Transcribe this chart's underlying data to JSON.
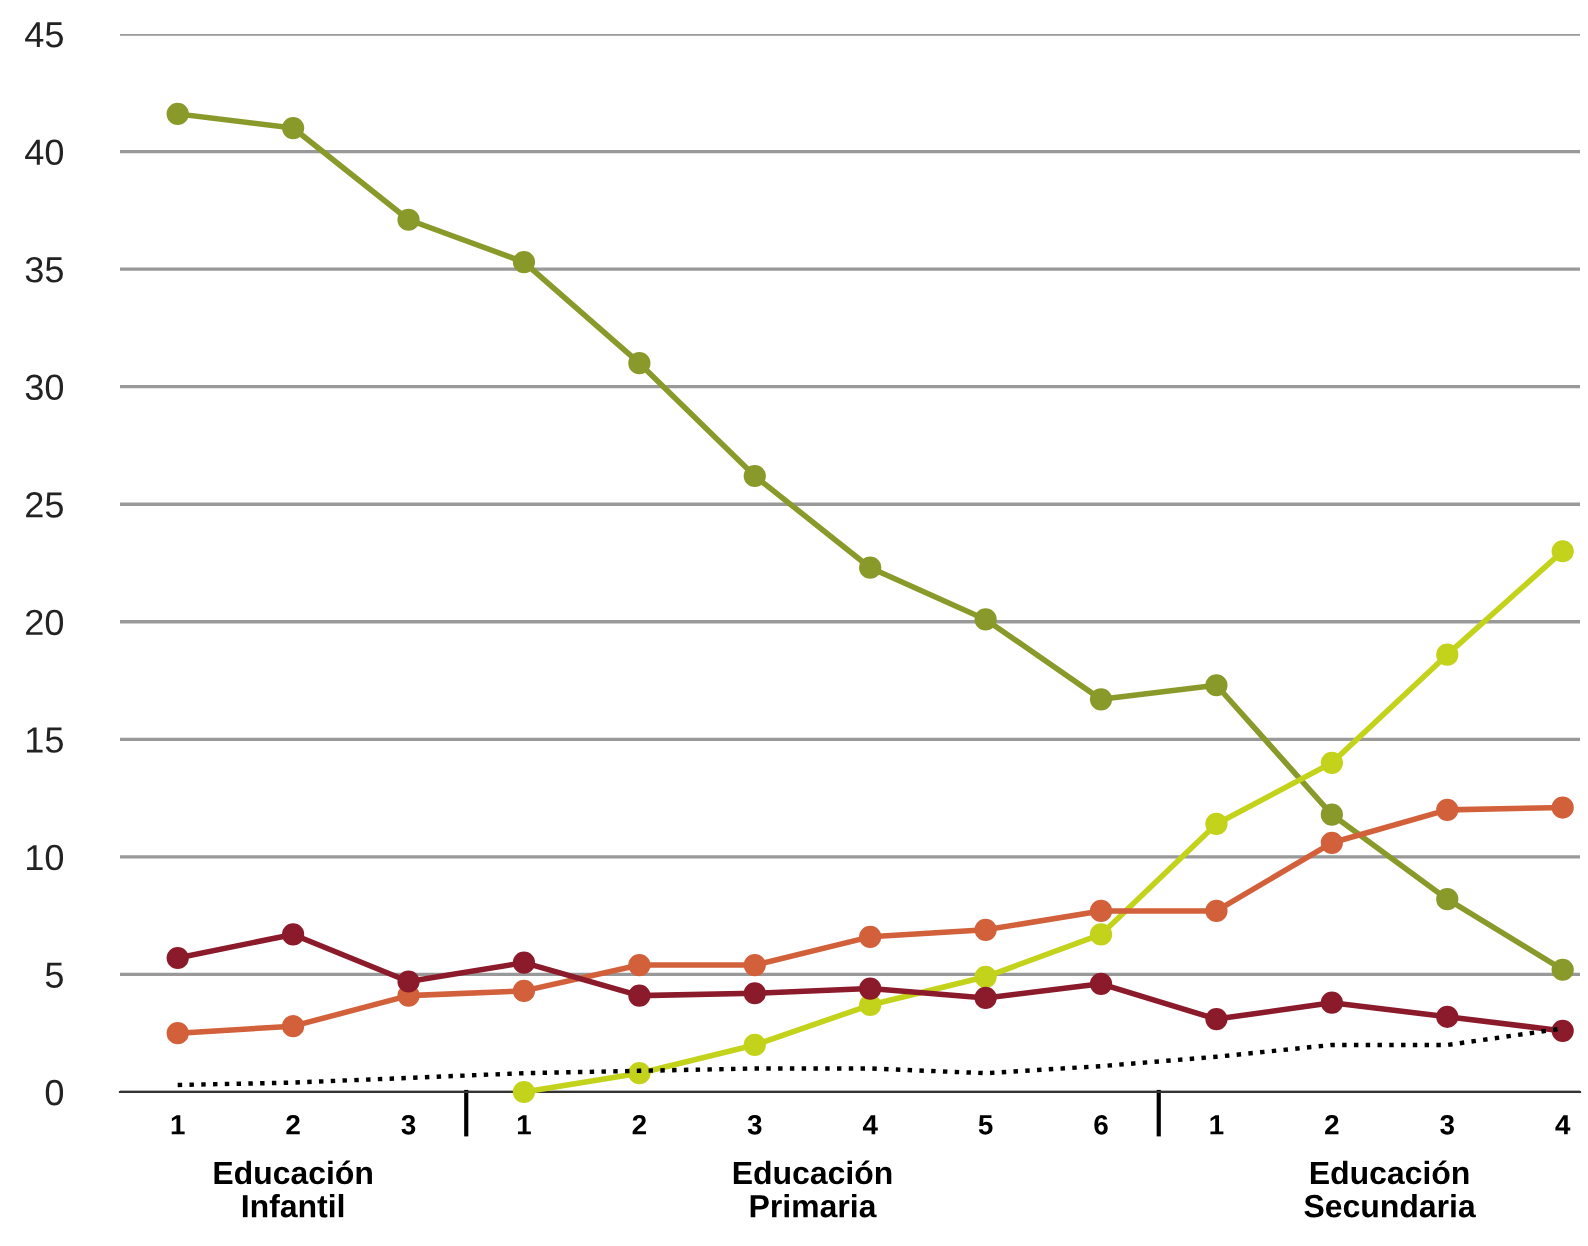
{
  "chart_data": {
    "type": "line",
    "categories": [
      "1",
      "2",
      "3",
      "1",
      "2",
      "3",
      "4",
      "5",
      "6",
      "1",
      "2",
      "3",
      "4"
    ],
    "series": [
      {
        "color": "#8a9a2a",
        "values": [
          41.6,
          41.0,
          37.1,
          35.3,
          31.0,
          26.2,
          22.3,
          20.1,
          16.7,
          17.3,
          11.8,
          8.2,
          5.2
        ]
      },
      {
        "color": "#c3d21a",
        "values": [
          null,
          null,
          null,
          0,
          0.8,
          2.0,
          3.7,
          4.9,
          6.7,
          11.4,
          14.0,
          18.6,
          23.0
        ]
      },
      {
        "color": "#d2603a",
        "values": [
          2.5,
          2.8,
          4.1,
          4.3,
          5.4,
          5.4,
          6.6,
          6.9,
          7.7,
          7.7,
          10.6,
          12.0,
          12.1
        ]
      },
      {
        "color": "#8b1a2a",
        "values": [
          5.7,
          6.7,
          4.7,
          5.5,
          4.1,
          4.2,
          4.4,
          4.0,
          4.6,
          3.1,
          3.8,
          3.2,
          2.6
        ]
      },
      {
        "color": "#000000",
        "marker": "none",
        "line_style": "dotted",
        "values": [
          0.3,
          0.4,
          0.6,
          0.8,
          0.9,
          1.0,
          1.0,
          0.8,
          1.1,
          1.5,
          2.0,
          2.0,
          2.7
        ]
      }
    ],
    "ylim": [
      0,
      45
    ],
    "yticks": [
      0,
      5,
      10,
      15,
      20,
      25,
      30,
      35,
      40,
      45
    ],
    "grid": "y",
    "marker": "circle",
    "line_style": "solid",
    "legend": false,
    "annotations": [
      "Educación\nInfantil",
      "Educación\nPrimaria",
      "Educación\nSecundaria"
    ]
  }
}
